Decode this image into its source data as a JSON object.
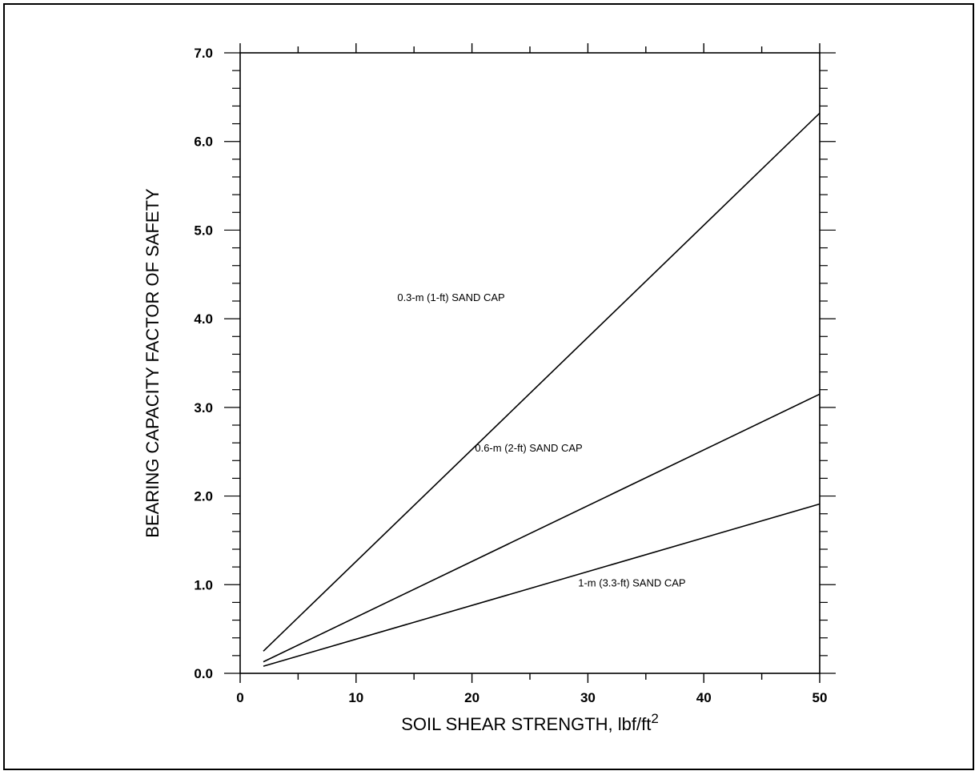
{
  "chart_data": {
    "type": "line",
    "title": "",
    "xlabel": "SOIL SHEAR STRENGTH, lbf/ft",
    "xlabel_superscript": "2",
    "ylabel": "BEARING CAPACITY FACTOR OF SAFETY",
    "xlim": [
      0,
      50
    ],
    "ylim": [
      0,
      7
    ],
    "x_ticks": [
      0,
      10,
      20,
      30,
      40,
      50
    ],
    "x_tick_labels": [
      "0",
      "10",
      "20",
      "30",
      "40",
      "50"
    ],
    "y_ticks": [
      0,
      1,
      2,
      3,
      4,
      5,
      6,
      7
    ],
    "y_tick_labels": [
      "0.0",
      "1.0",
      "2.0",
      "3.0",
      "4.0",
      "5.0",
      "6.0",
      "7.0"
    ],
    "x_minor_step": 5,
    "y_minor_step": 0.2,
    "grid": false,
    "legend": "none",
    "series": [
      {
        "name": "0.3-m (1-ft) SAND CAP",
        "x": [
          2,
          50
        ],
        "y": [
          0.25,
          6.32
        ]
      },
      {
        "name": "0.6-m (2-ft) SAND CAP",
        "x": [
          2,
          50
        ],
        "y": [
          0.13,
          3.15
        ]
      },
      {
        "name": "1-m (3.3-ft) SAND CAP",
        "x": [
          2,
          50
        ],
        "y": [
          0.08,
          1.91
        ]
      }
    ],
    "annotations": [
      {
        "text": "0.3-m (1-ft) SAND CAP",
        "x": 18.2,
        "y": 4.2
      },
      {
        "text": "0.6-m (2-ft) SAND CAP",
        "x": 24.9,
        "y": 2.5
      },
      {
        "text": "1-m (3.3-ft) SAND CAP",
        "x": 33.8,
        "y": 0.98
      }
    ]
  }
}
